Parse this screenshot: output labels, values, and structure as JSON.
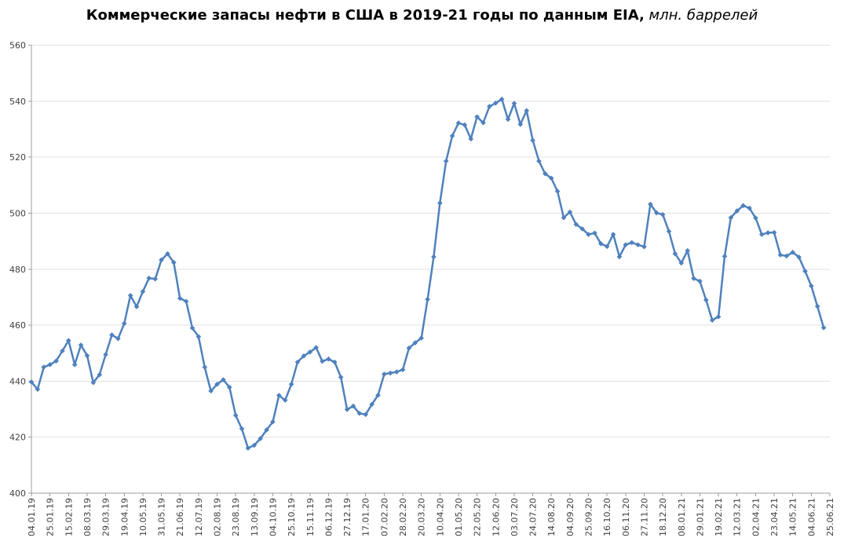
{
  "chart_data": {
    "type": "line",
    "title": {
      "text": "Коммерческие запасы нефти в США в 2019-21 годы по данным EIA,",
      "units_suffix": " млн. баррелей"
    },
    "legend": "none",
    "grid": "horizontal",
    "line_color": "#4F81BD",
    "marker": "diamond",
    "ylim": [
      400,
      560
    ],
    "y_tick_step": 20,
    "x_tick_interval": 3,
    "x_total_slots": 130,
    "x_label_rotation": -90,
    "x_axis_tick_labels": [
      "04.01.19",
      "25.01.19",
      "15.02.19",
      "08.03.19",
      "29.03.19",
      "19.04.19",
      "10.05.19",
      "31.05.19",
      "21.06.19",
      "12.07.19",
      "02.08.19",
      "23.08.19",
      "13.09.19",
      "04.10.19",
      "25.10.19",
      "15.11.19",
      "06.12.19",
      "27.12.19",
      "17.01.20",
      "07.02.20",
      "28.02.20",
      "20.03.20",
      "10.04.20",
      "01.05.20",
      "22.05.20",
      "12.06.20",
      "03.07.20",
      "24.07.20",
      "14.08.20",
      "04.09.20",
      "25.09.20",
      "16.10.20",
      "06.11.20",
      "27.11.20",
      "18.12.20",
      "08.01.21",
      "29.01.21",
      "19.02.21",
      "12.03.21",
      "02.04.21",
      "23.04.21",
      "14.05.21",
      "04.06.21",
      "25.06.21"
    ],
    "dates": [
      "04.01.19",
      "11.01.19",
      "18.01.19",
      "25.01.19",
      "01.02.19",
      "08.02.19",
      "15.02.19",
      "22.02.19",
      "01.03.19",
      "08.03.19",
      "15.03.19",
      "22.03.19",
      "29.03.19",
      "05.04.19",
      "12.04.19",
      "19.04.19",
      "26.04.19",
      "03.05.19",
      "10.05.19",
      "17.05.19",
      "24.05.19",
      "31.05.19",
      "07.06.19",
      "14.06.19",
      "21.06.19",
      "28.06.19",
      "05.07.19",
      "12.07.19",
      "19.07.19",
      "26.07.19",
      "02.08.19",
      "09.08.19",
      "16.08.19",
      "23.08.19",
      "30.08.19",
      "06.09.19",
      "13.09.19",
      "20.09.19",
      "27.09.19",
      "04.10.19",
      "11.10.19",
      "18.10.19",
      "25.10.19",
      "01.11.19",
      "08.11.19",
      "15.11.19",
      "22.11.19",
      "29.11.19",
      "06.12.19",
      "13.12.19",
      "20.12.19",
      "27.12.19",
      "03.01.20",
      "10.01.20",
      "17.01.20",
      "24.01.20",
      "31.01.20",
      "07.02.20",
      "14.02.20",
      "21.02.20",
      "28.02.20",
      "06.03.20",
      "13.03.20",
      "20.03.20",
      "27.03.20",
      "03.04.20",
      "10.04.20",
      "17.04.20",
      "24.04.20",
      "01.05.20",
      "08.05.20",
      "15.05.20",
      "22.05.20",
      "29.05.20",
      "05.06.20",
      "12.06.20",
      "19.06.20",
      "26.06.20",
      "03.07.20",
      "10.07.20",
      "17.07.20",
      "24.07.20",
      "31.07.20",
      "07.08.20",
      "14.08.20",
      "21.08.20",
      "28.08.20",
      "04.09.20",
      "11.09.20",
      "18.09.20",
      "25.09.20",
      "02.10.20",
      "09.10.20",
      "16.10.20",
      "23.10.20",
      "30.10.20",
      "06.11.20",
      "13.11.20",
      "20.11.20",
      "27.11.20",
      "04.12.20",
      "11.12.20",
      "18.12.20",
      "25.12.20",
      "01.01.21",
      "08.01.21",
      "15.01.21",
      "22.01.21",
      "29.01.21",
      "05.02.21",
      "12.02.21",
      "19.02.21",
      "26.02.21",
      "05.03.21",
      "12.03.21",
      "19.03.21",
      "26.03.21",
      "02.04.21",
      "09.04.21",
      "16.04.21",
      "23.04.21",
      "30.04.21",
      "07.05.21",
      "14.05.21",
      "21.05.21",
      "28.05.21",
      "04.06.21",
      "11.06.21",
      "18.06.21"
    ],
    "values": [
      439.7,
      437.1,
      445.0,
      445.9,
      447.2,
      450.8,
      454.5,
      445.9,
      452.9,
      449.1,
      439.5,
      442.3,
      449.5,
      456.5,
      455.2,
      460.6,
      470.6,
      466.6,
      472.0,
      476.8,
      476.5,
      483.3,
      485.5,
      482.4,
      469.6,
      468.5,
      459.0,
      455.9,
      445.0,
      436.5,
      438.9,
      440.5,
      437.8,
      427.8,
      423.0,
      416.1,
      417.1,
      419.5,
      422.6,
      425.5,
      434.9,
      433.2,
      438.9,
      446.8,
      449.0,
      450.4,
      452.0,
      447.1,
      447.9,
      446.8,
      441.4,
      429.9,
      431.1,
      428.5,
      428.1,
      431.7,
      435.0,
      442.5,
      442.9,
      443.3,
      444.1,
      451.8,
      453.7,
      455.4,
      469.2,
      484.4,
      503.6,
      518.6,
      527.6,
      532.2,
      531.5,
      526.5,
      534.4,
      532.3,
      538.1,
      539.3,
      540.7,
      533.5,
      539.2,
      531.7,
      536.6,
      526.0,
      518.6,
      514.1,
      512.5,
      507.8,
      498.4,
      500.4,
      496.0,
      494.4,
      492.4,
      492.9,
      489.1,
      488.1,
      492.4,
      484.4,
      488.7,
      489.5,
      488.7,
      488.0,
      503.2,
      500.1,
      499.5,
      493.5,
      485.5,
      482.2,
      486.6,
      476.7,
      475.7,
      469.0,
      461.8,
      463.0,
      484.6,
      498.4,
      500.8,
      502.7,
      501.8,
      498.3,
      492.4,
      493.0,
      493.1,
      485.1,
      484.7,
      486.0,
      484.3,
      479.3,
      474.0,
      466.7,
      459.1
    ]
  }
}
